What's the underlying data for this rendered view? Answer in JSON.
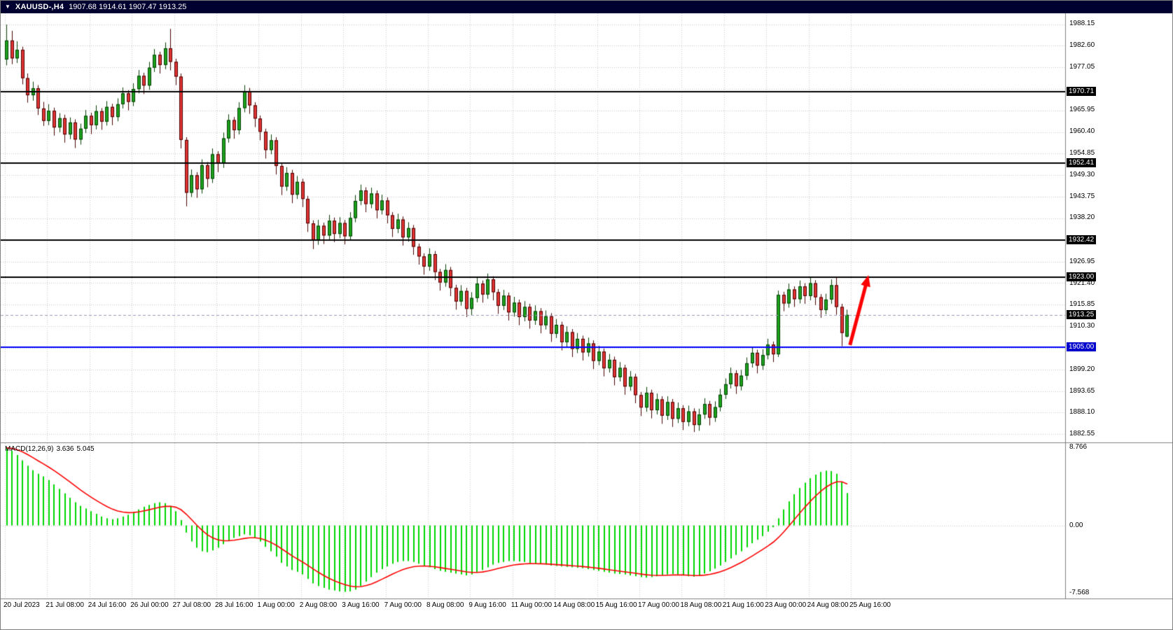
{
  "header": {
    "dropdown_icon": "▼",
    "symbol_period": "XAUUSD-,H4",
    "ohlc": "1907.68 1914.61 1907.47 1913.25"
  },
  "macd": {
    "name": "MACD(12,26,9)",
    "main_value": "3.636",
    "signal_value": "5.045"
  },
  "price_axis": {
    "tick_labels": [
      "1988.15",
      "1982.60",
      "1977.05",
      "1965.95",
      "1960.40",
      "1954.85",
      "1949.30",
      "1943.75",
      "1938.20",
      "1926.95",
      "1921.40",
      "1915.85",
      "1910.30",
      "1899.20",
      "1893.65",
      "1888.10",
      "1882.55"
    ]
  },
  "macd_axis": {
    "tick_labels": [
      "8.766",
      "0.00",
      "-7.568"
    ]
  },
  "time_axis": {
    "labels": [
      "20 Jul 2023",
      "21 Jul 08:00",
      "24 Jul 16:00",
      "26 Jul 00:00",
      "27 Jul 08:00",
      "28 Jul 16:00",
      "1 Aug 00:00",
      "2 Aug 08:00",
      "3 Aug 16:00",
      "7 Aug 00:00",
      "8 Aug 08:00",
      "9 Aug 16:00",
      "11 Aug 00:00",
      "14 Aug 08:00",
      "15 Aug 16:00",
      "17 Aug 00:00",
      "18 Aug 08:00",
      "21 Aug 16:00",
      "23 Aug 00:00",
      "24 Aug 08:00",
      "25 Aug 16:00"
    ]
  },
  "levels": [
    {
      "price": 1970.71,
      "label": "1970.71",
      "line_color": "#000000",
      "tag_bg": "#000000",
      "tag_fg": "#ffffff"
    },
    {
      "price": 1952.41,
      "label": "1952.41",
      "line_color": "#000000",
      "tag_bg": "#000000",
      "tag_fg": "#ffffff"
    },
    {
      "price": 1932.42,
      "label": "1932.42",
      "line_color": "#000000",
      "tag_bg": "#000000",
      "tag_fg": "#ffffff"
    },
    {
      "price": 1923.0,
      "label": "1923.00",
      "line_color": "#000000",
      "tag_bg": "#000000",
      "tag_fg": "#ffffff"
    },
    {
      "price": 1905.0,
      "label": "1905.00",
      "line_color": "#0000ff",
      "tag_bg": "#0000cc",
      "tag_fg": "#ffffff"
    }
  ],
  "current_price": {
    "value": 1913.25,
    "label": "1913.25",
    "tag_bg": "#000000",
    "tag_fg": "#ffffff",
    "line_color": "#9a9ab8"
  },
  "annotations": {
    "arrow": {
      "color": "#ff0000",
      "tail_index": 159.5,
      "tail_price": 1905.5,
      "head_index": 163.0,
      "head_price": 1923.5
    }
  },
  "chart_data": {
    "type": "candlestick",
    "symbol": "XAUUSD-",
    "timeframe": "H4",
    "title": "XAUUSD- H4 candlestick chart with MACD(12,26,9), horizontal levels 1970.71 / 1952.41 / 1932.42 / 1923.00, blue support 1905.00, current price 1913.25, red up arrow annotation",
    "y_axis": {
      "top_price": 1990.9,
      "bottom_price": 1880.6,
      "grid_step": 5.555,
      "grid_base": 1882.55
    },
    "candles": [
      [
        1979.0,
        1988.0,
        1977.5,
        1983.9
      ],
      [
        1983.9,
        1986.4,
        1977.8,
        1979.3
      ],
      [
        1979.3,
        1983.7,
        1978.1,
        1981.5
      ],
      [
        1981.5,
        1982.3,
        1972.6,
        1974.2
      ],
      [
        1974.2,
        1975.4,
        1967.9,
        1969.8
      ],
      [
        1969.8,
        1973.3,
        1968.4,
        1971.6
      ],
      [
        1971.6,
        1972.4,
        1964.7,
        1966.4
      ],
      [
        1966.4,
        1968.1,
        1961.9,
        1963.2
      ],
      [
        1963.2,
        1967.5,
        1962.1,
        1965.8
      ],
      [
        1965.8,
        1966.6,
        1959.4,
        1961.5
      ],
      [
        1961.5,
        1965.2,
        1960.3,
        1963.9
      ],
      [
        1963.9,
        1964.8,
        1957.6,
        1959.7
      ],
      [
        1959.7,
        1964.1,
        1958.5,
        1962.8
      ],
      [
        1962.8,
        1963.6,
        1956.2,
        1958.4
      ],
      [
        1958.4,
        1962.5,
        1957.1,
        1961.2
      ],
      [
        1961.2,
        1966.0,
        1960.1,
        1964.5
      ],
      [
        1964.5,
        1965.3,
        1959.8,
        1962.1
      ],
      [
        1962.1,
        1967.2,
        1961.0,
        1965.7
      ],
      [
        1965.7,
        1966.5,
        1960.9,
        1963.0
      ],
      [
        1963.0,
        1968.3,
        1962.0,
        1966.8
      ],
      [
        1966.8,
        1967.6,
        1962.1,
        1964.2
      ],
      [
        1964.2,
        1969.0,
        1963.1,
        1967.5
      ],
      [
        1967.5,
        1971.8,
        1966.4,
        1970.3
      ],
      [
        1970.3,
        1971.1,
        1965.9,
        1968.1
      ],
      [
        1968.1,
        1972.9,
        1967.0,
        1971.4
      ],
      [
        1971.4,
        1976.3,
        1970.3,
        1974.8
      ],
      [
        1974.8,
        1975.6,
        1970.1,
        1972.3
      ],
      [
        1972.3,
        1978.4,
        1971.2,
        1976.9
      ],
      [
        1976.9,
        1981.7,
        1975.8,
        1980.2
      ],
      [
        1980.2,
        1981.0,
        1975.4,
        1977.6
      ],
      [
        1977.6,
        1983.4,
        1976.5,
        1981.9
      ],
      [
        1981.9,
        1986.9,
        1976.2,
        1978.4
      ],
      [
        1978.4,
        1979.2,
        1972.4,
        1974.6
      ],
      [
        1974.6,
        1975.4,
        1956.1,
        1958.3
      ],
      [
        1958.3,
        1959.0,
        1941.2,
        1944.7
      ],
      [
        1944.7,
        1950.7,
        1943.6,
        1949.2
      ],
      [
        1949.2,
        1950.0,
        1943.4,
        1945.6
      ],
      [
        1945.6,
        1953.3,
        1944.5,
        1951.8
      ],
      [
        1951.8,
        1952.6,
        1946.1,
        1948.3
      ],
      [
        1948.3,
        1956.1,
        1947.2,
        1954.6
      ],
      [
        1954.6,
        1955.4,
        1950.0,
        1952.2
      ],
      [
        1952.2,
        1960.2,
        1951.1,
        1958.7
      ],
      [
        1958.7,
        1964.9,
        1957.6,
        1963.4
      ],
      [
        1963.4,
        1964.2,
        1958.6,
        1960.8
      ],
      [
        1960.8,
        1968.0,
        1959.7,
        1966.5
      ],
      [
        1966.5,
        1972.4,
        1965.4,
        1970.9
      ],
      [
        1970.9,
        1971.7,
        1965.0,
        1967.2
      ],
      [
        1967.2,
        1968.0,
        1961.6,
        1963.8
      ],
      [
        1963.8,
        1964.6,
        1958.2,
        1960.4
      ],
      [
        1960.4,
        1961.2,
        1953.5,
        1955.7
      ],
      [
        1955.7,
        1959.7,
        1954.6,
        1958.2
      ],
      [
        1958.2,
        1959.0,
        1949.4,
        1951.6
      ],
      [
        1951.6,
        1952.4,
        1944.1,
        1946.3
      ],
      [
        1946.3,
        1951.3,
        1945.2,
        1949.8
      ],
      [
        1949.8,
        1950.6,
        1942.0,
        1944.2
      ],
      [
        1944.2,
        1949.0,
        1943.1,
        1947.5
      ],
      [
        1947.5,
        1948.3,
        1941.0,
        1943.1
      ],
      [
        1943.1,
        1943.9,
        1934.6,
        1936.8
      ],
      [
        1936.8,
        1937.6,
        1930.2,
        1932.4
      ],
      [
        1932.4,
        1937.7,
        1931.3,
        1936.2
      ],
      [
        1936.2,
        1937.0,
        1931.5,
        1933.7
      ],
      [
        1933.7,
        1939.0,
        1932.6,
        1937.5
      ],
      [
        1937.5,
        1938.3,
        1932.0,
        1934.1
      ],
      [
        1934.1,
        1938.4,
        1933.0,
        1936.9
      ],
      [
        1936.9,
        1937.7,
        1931.4,
        1933.5
      ],
      [
        1933.5,
        1939.7,
        1932.4,
        1938.2
      ],
      [
        1938.2,
        1944.1,
        1937.1,
        1942.6
      ],
      [
        1942.6,
        1946.8,
        1941.5,
        1945.3
      ],
      [
        1945.3,
        1946.1,
        1939.7,
        1941.8
      ],
      [
        1941.8,
        1946.0,
        1940.7,
        1944.5
      ],
      [
        1944.5,
        1945.3,
        1938.1,
        1940.2
      ],
      [
        1940.2,
        1944.2,
        1939.1,
        1942.7
      ],
      [
        1942.7,
        1943.5,
        1936.8,
        1938.9
      ],
      [
        1938.9,
        1939.7,
        1933.3,
        1935.4
      ],
      [
        1935.4,
        1939.3,
        1934.3,
        1937.8
      ],
      [
        1937.8,
        1938.6,
        1931.1,
        1933.2
      ],
      [
        1933.2,
        1937.1,
        1932.1,
        1935.6
      ],
      [
        1935.6,
        1936.4,
        1928.7,
        1930.8
      ],
      [
        1930.8,
        1931.6,
        1926.2,
        1928.3
      ],
      [
        1928.3,
        1929.1,
        1923.6,
        1925.7
      ],
      [
        1925.7,
        1930.4,
        1924.6,
        1928.9
      ],
      [
        1928.9,
        1929.7,
        1922.2,
        1924.3
      ],
      [
        1924.3,
        1925.1,
        1919.5,
        1921.6
      ],
      [
        1921.6,
        1926.3,
        1920.5,
        1924.8
      ],
      [
        1924.8,
        1925.6,
        1918.1,
        1920.2
      ],
      [
        1920.2,
        1921.0,
        1914.6,
        1916.7
      ],
      [
        1916.7,
        1920.9,
        1915.6,
        1919.4
      ],
      [
        1919.4,
        1920.2,
        1912.7,
        1914.8
      ],
      [
        1914.8,
        1919.1,
        1913.1,
        1917.6
      ],
      [
        1917.6,
        1922.8,
        1916.5,
        1921.3
      ],
      [
        1921.3,
        1922.1,
        1916.4,
        1918.5
      ],
      [
        1918.5,
        1923.9,
        1917.4,
        1922.4
      ],
      [
        1922.4,
        1923.2,
        1917.0,
        1919.1
      ],
      [
        1919.1,
        1919.9,
        1913.5,
        1915.6
      ],
      [
        1915.6,
        1919.7,
        1914.5,
        1918.2
      ],
      [
        1918.2,
        1919.0,
        1911.8,
        1913.9
      ],
      [
        1913.9,
        1917.9,
        1912.8,
        1916.4
      ],
      [
        1916.4,
        1917.2,
        1910.6,
        1912.7
      ],
      [
        1912.7,
        1916.8,
        1911.6,
        1915.3
      ],
      [
        1915.3,
        1916.1,
        1909.7,
        1911.8
      ],
      [
        1911.8,
        1915.7,
        1910.7,
        1914.2
      ],
      [
        1914.2,
        1915.0,
        1908.5,
        1910.6
      ],
      [
        1910.6,
        1914.4,
        1909.5,
        1912.9
      ],
      [
        1912.9,
        1913.7,
        1906.3,
        1908.4
      ],
      [
        1908.4,
        1912.2,
        1907.3,
        1910.7
      ],
      [
        1910.7,
        1911.5,
        1904.1,
        1906.2
      ],
      [
        1906.2,
        1910.3,
        1905.1,
        1908.8
      ],
      [
        1908.8,
        1909.6,
        1902.4,
        1904.5
      ],
      [
        1904.5,
        1908.6,
        1903.4,
        1907.1
      ],
      [
        1907.1,
        1907.9,
        1901.5,
        1903.6
      ],
      [
        1903.6,
        1907.4,
        1902.5,
        1905.9
      ],
      [
        1905.9,
        1906.7,
        1899.3,
        1901.4
      ],
      [
        1901.4,
        1905.3,
        1900.3,
        1903.8
      ],
      [
        1903.8,
        1904.6,
        1897.4,
        1899.5
      ],
      [
        1899.5,
        1903.2,
        1898.4,
        1901.7
      ],
      [
        1901.7,
        1902.5,
        1895.1,
        1897.2
      ],
      [
        1897.2,
        1901.1,
        1896.1,
        1899.6
      ],
      [
        1899.6,
        1900.4,
        1892.7,
        1894.8
      ],
      [
        1894.8,
        1898.8,
        1893.7,
        1897.3
      ],
      [
        1897.3,
        1898.1,
        1890.5,
        1892.6
      ],
      [
        1892.6,
        1893.4,
        1887.2,
        1889.4
      ],
      [
        1889.4,
        1894.7,
        1888.3,
        1893.2
      ],
      [
        1893.2,
        1894.0,
        1886.6,
        1888.7
      ],
      [
        1888.7,
        1893.0,
        1887.6,
        1891.5
      ],
      [
        1891.5,
        1892.3,
        1885.2,
        1887.3
      ],
      [
        1887.3,
        1892.3,
        1886.2,
        1890.8
      ],
      [
        1890.8,
        1891.6,
        1884.4,
        1886.5
      ],
      [
        1886.5,
        1890.7,
        1885.4,
        1889.2
      ],
      [
        1889.2,
        1890.0,
        1883.6,
        1885.7
      ],
      [
        1885.7,
        1889.9,
        1884.6,
        1888.4
      ],
      [
        1888.4,
        1889.2,
        1883.1,
        1884.9
      ],
      [
        1884.9,
        1889.1,
        1883.4,
        1887.6
      ],
      [
        1887.6,
        1891.8,
        1886.5,
        1890.3
      ],
      [
        1890.3,
        1891.1,
        1884.8,
        1886.8
      ],
      [
        1886.8,
        1891.0,
        1885.7,
        1889.5
      ],
      [
        1889.5,
        1894.2,
        1888.4,
        1892.7
      ],
      [
        1892.7,
        1896.9,
        1891.6,
        1895.4
      ],
      [
        1895.4,
        1899.7,
        1894.3,
        1898.2
      ],
      [
        1898.2,
        1899.0,
        1892.9,
        1894.9
      ],
      [
        1894.9,
        1899.1,
        1893.8,
        1897.6
      ],
      [
        1897.6,
        1902.3,
        1896.5,
        1900.8
      ],
      [
        1900.8,
        1905.0,
        1899.7,
        1903.5
      ],
      [
        1903.5,
        1904.3,
        1898.2,
        1900.2
      ],
      [
        1900.2,
        1904.4,
        1899.1,
        1902.9
      ],
      [
        1902.9,
        1907.1,
        1901.8,
        1905.6
      ],
      [
        1905.6,
        1906.4,
        1901.1,
        1903.1
      ],
      [
        1903.1,
        1919.5,
        1902.4,
        1918.4
      ],
      [
        1918.4,
        1919.2,
        1914.2,
        1916.2
      ],
      [
        1916.2,
        1921.3,
        1915.1,
        1919.8
      ],
      [
        1919.8,
        1920.6,
        1915.3,
        1917.3
      ],
      [
        1917.3,
        1922.1,
        1916.2,
        1920.6
      ],
      [
        1920.6,
        1921.4,
        1916.1,
        1918.1
      ],
      [
        1918.1,
        1922.9,
        1917.0,
        1921.4
      ],
      [
        1921.4,
        1922.2,
        1915.8,
        1917.8
      ],
      [
        1917.8,
        1918.6,
        1912.5,
        1914.5
      ],
      [
        1914.5,
        1918.7,
        1913.4,
        1917.2
      ],
      [
        1917.2,
        1922.4,
        1916.1,
        1920.9
      ],
      [
        1920.9,
        1923.0,
        1913.3,
        1915.3
      ],
      [
        1915.3,
        1916.1,
        1905.2,
        1908.6
      ],
      [
        1907.68,
        1914.61,
        1907.47,
        1913.25
      ]
    ],
    "indicator": {
      "type": "macd",
      "params": [
        12,
        26,
        9
      ],
      "axis_max": 8.766,
      "axis_min": -7.568,
      "signal_period": 9,
      "histogram": [
        8.7,
        8.4,
        7.9,
        7.3,
        6.7,
        6.2,
        5.8,
        5.5,
        5.1,
        4.6,
        4.1,
        3.6,
        3.1,
        2.6,
        2.2,
        1.9,
        1.6,
        1.3,
        1.0,
        0.8,
        0.7,
        0.8,
        1.0,
        1.2,
        1.5,
        1.8,
        2.1,
        2.3,
        2.5,
        2.6,
        2.5,
        2.2,
        1.6,
        0.6,
        -0.8,
        -1.8,
        -2.5,
        -2.9,
        -3.0,
        -2.8,
        -2.5,
        -2.1,
        -1.7,
        -1.4,
        -1.2,
        -1.0,
        -1.1,
        -1.4,
        -1.8,
        -2.4,
        -2.9,
        -3.5,
        -4.2,
        -4.6,
        -5.0,
        -5.2,
        -5.5,
        -6.0,
        -6.5,
        -6.8,
        -7.0,
        -7.2,
        -7.3,
        -7.4,
        -7.45,
        -7.4,
        -7.2,
        -6.8,
        -6.3,
        -5.8,
        -5.3,
        -4.9,
        -4.6,
        -4.3,
        -4.1,
        -4.0,
        -4.0,
        -4.1,
        -4.3,
        -4.5,
        -4.7,
        -4.9,
        -5.1,
        -5.2,
        -5.3,
        -5.4,
        -5.5,
        -5.6,
        -5.5,
        -5.3,
        -5.0,
        -4.7,
        -4.4,
        -4.2,
        -4.1,
        -4.0,
        -4.0,
        -4.05,
        -4.1,
        -4.2,
        -4.3,
        -4.35,
        -4.4,
        -4.5,
        -4.55,
        -4.6,
        -4.65,
        -4.7,
        -4.75,
        -4.8,
        -4.9,
        -5.0,
        -5.1,
        -5.2,
        -5.3,
        -5.4,
        -5.45,
        -5.5,
        -5.6,
        -5.7,
        -5.8,
        -5.85,
        -5.8,
        -5.7,
        -5.6,
        -5.5,
        -5.45,
        -5.5,
        -5.6,
        -5.7,
        -5.75,
        -5.6,
        -5.4,
        -5.15,
        -4.85,
        -4.5,
        -4.1,
        -3.7,
        -3.3,
        -2.9,
        -2.45,
        -2.0,
        -1.6,
        -1.2,
        -0.7,
        -0.2,
        0.8,
        1.8,
        2.7,
        3.5,
        4.2,
        4.8,
        5.3,
        5.7,
        6.0,
        6.15,
        6.1,
        5.8,
        4.9,
        3.636
      ]
    }
  },
  "colors": {
    "background": "#ffffff",
    "grid": "#c9c9c9",
    "bull_fill": "#1ca31c",
    "bull_border": "#053f05",
    "bear_fill": "#e23232",
    "bear_border": "#4a0303",
    "macd_histogram": "#00d800",
    "macd_signal": "#ff0000",
    "current_price_line": "#9a9ab8",
    "titlebar_bg": "#000030",
    "titlebar_fg": "#ffffff",
    "axis_separator": "#7f7f7f",
    "arrow": "#ff0000"
  }
}
